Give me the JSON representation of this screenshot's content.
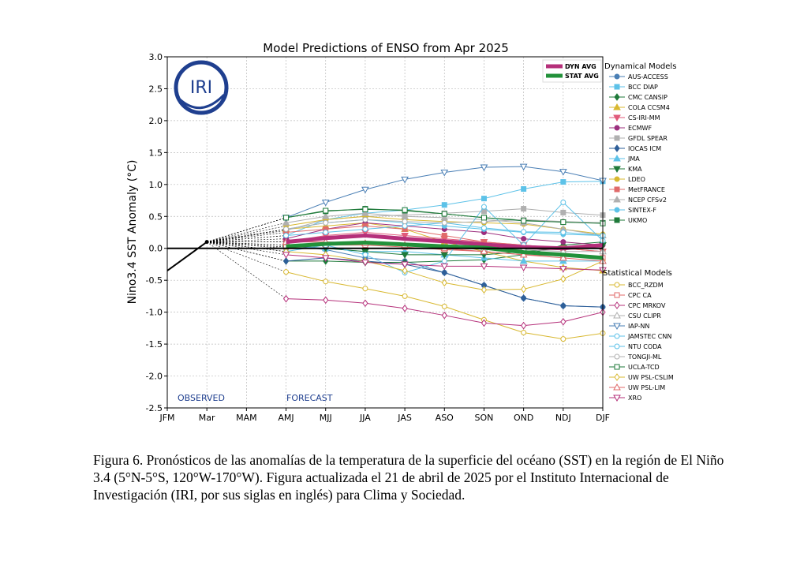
{
  "chart_data": {
    "type": "line",
    "title": "Model Predictions of ENSO from Apr 2025",
    "ylabel": "Nino3.4 SST Anomaly (°C)",
    "xlabel": "",
    "ylim": [
      -2.5,
      3.0
    ],
    "yticks": [
      -2.5,
      -2.0,
      -1.5,
      -1.0,
      -0.5,
      0.0,
      0.5,
      1.0,
      1.5,
      2.0,
      2.5,
      3.0
    ],
    "categories": [
      "JFM",
      "Mar",
      "MAM",
      "AMJ",
      "MJJ",
      "JJA",
      "JAS",
      "ASO",
      "SON",
      "OND",
      "NDJ",
      "DJF"
    ],
    "grid": true,
    "annotations": {
      "observed": "OBSERVED",
      "forecast": "FORECAST",
      "logo": "IRI"
    },
    "observed": [
      -0.35,
      0.1
    ],
    "legend_dyn_title": "Dynamical Models",
    "legend_stat_title": "Statistical Models",
    "averages": [
      {
        "name": "DYN AVG",
        "color": "#b5307a",
        "values": [
          null,
          null,
          null,
          0.1,
          0.16,
          0.2,
          0.15,
          0.11,
          0.06,
          0.02,
          0.0,
          0.05
        ]
      },
      {
        "name": "STAT AVG",
        "color": "#22913a",
        "values": [
          null,
          null,
          null,
          0.03,
          0.07,
          0.09,
          0.06,
          0.03,
          0.01,
          -0.06,
          -0.1,
          -0.15
        ]
      }
    ],
    "dynamical": [
      {
        "name": "AUS-ACCESS",
        "color": "#4a7fb5",
        "marker": "circle",
        "filled": true,
        "values": [
          null,
          null,
          null,
          0.05,
          -0.02,
          -0.15,
          -0.2,
          -0.38,
          -0.58,
          -0.78,
          -0.9,
          -0.92
        ]
      },
      {
        "name": "BCC DIAP",
        "color": "#5dc2e8",
        "marker": "square",
        "filled": true,
        "values": [
          null,
          null,
          null,
          0.2,
          0.45,
          0.55,
          0.6,
          0.68,
          0.78,
          0.93,
          1.04,
          1.05
        ]
      },
      {
        "name": "CMC CANSIP",
        "color": "#1f7a3a",
        "marker": "diamond",
        "filled": true,
        "values": [
          null,
          null,
          null,
          -0.2,
          -0.2,
          -0.22,
          -0.22,
          -0.2,
          -0.18,
          -0.1,
          0.05,
          0.1
        ]
      },
      {
        "name": "COLA CCSM4",
        "color": "#d8b830",
        "marker": "triangle",
        "filled": true,
        "values": [
          null,
          null,
          null,
          0.3,
          0.35,
          0.4,
          0.3,
          0.1,
          -0.05,
          -0.2,
          -0.3,
          -0.35
        ]
      },
      {
        "name": "CS-IRI-MM",
        "color": "#e05a7a",
        "marker": "triangle-down",
        "filled": true,
        "values": [
          null,
          null,
          null,
          0.1,
          0.2,
          0.25,
          0.2,
          0.15,
          0.1,
          0.05,
          0.0,
          -0.05
        ]
      },
      {
        "name": "ECMWF",
        "color": "#9c2f7e",
        "marker": "circle",
        "filled": true,
        "values": [
          null,
          null,
          null,
          0.15,
          0.3,
          0.4,
          0.35,
          0.3,
          0.25,
          0.15,
          0.1,
          0.05
        ]
      },
      {
        "name": "GFDL SPEAR",
        "color": "#b0b0b0",
        "marker": "square",
        "filled": true,
        "values": [
          null,
          null,
          null,
          0.28,
          0.45,
          0.5,
          0.52,
          0.55,
          0.58,
          0.62,
          0.56,
          0.52
        ]
      },
      {
        "name": "IOCAS ICM",
        "color": "#2e5f99",
        "marker": "diamond",
        "filled": true,
        "values": [
          null,
          null,
          null,
          -0.2,
          -0.15,
          -0.2,
          -0.25,
          -0.38,
          -0.58,
          -0.78,
          -0.9,
          -0.92
        ]
      },
      {
        "name": "JMA",
        "color": "#5dc2e8",
        "marker": "triangle",
        "filled": true,
        "values": [
          null,
          null,
          null,
          0.05,
          0.0,
          -0.05,
          -0.05,
          -0.1,
          -0.15,
          -0.2,
          -0.2,
          -0.2
        ]
      },
      {
        "name": "KMA",
        "color": "#1f7a3a",
        "marker": "triangle-down",
        "filled": true,
        "values": [
          null,
          null,
          null,
          0.0,
          0.0,
          -0.05,
          -0.1,
          -0.1,
          -0.1,
          -0.05,
          0.0,
          0.05
        ]
      },
      {
        "name": "LDEO",
        "color": "#d8b830",
        "marker": "circle",
        "filled": true,
        "values": [
          null,
          null,
          null,
          0.35,
          0.45,
          0.5,
          0.45,
          0.42,
          0.4,
          0.38,
          0.3,
          0.22
        ]
      },
      {
        "name": "MetFRANCE",
        "color": "#e06a6a",
        "marker": "square",
        "filled": true,
        "values": [
          null,
          null,
          null,
          0.25,
          0.3,
          0.35,
          0.3,
          0.2,
          0.1,
          0.05,
          0.0,
          -0.05
        ]
      },
      {
        "name": "NCEP CFSv2",
        "color": "#b0b0b0",
        "marker": "triangle",
        "filled": true,
        "values": [
          null,
          null,
          null,
          0.4,
          0.5,
          0.55,
          0.5,
          0.48,
          0.45,
          0.4,
          0.3,
          0.2
        ]
      },
      {
        "name": "SINTEX-F",
        "color": "#5dc2e8",
        "marker": "circle",
        "filled": true,
        "values": [
          null,
          null,
          null,
          0.3,
          0.4,
          0.45,
          0.4,
          0.35,
          0.3,
          0.25,
          0.22,
          0.2
        ]
      },
      {
        "name": "UKMO",
        "color": "#1f7a3a",
        "marker": "square",
        "filled": true,
        "values": [
          null,
          null,
          null,
          0.48,
          0.58,
          0.62,
          0.59,
          0.54,
          0.48,
          0.44,
          0.41,
          0.4
        ]
      }
    ],
    "statistical": [
      {
        "name": "BCC_RZDM",
        "color": "#d8b830",
        "marker": "circle",
        "filled": false,
        "values": [
          null,
          null,
          null,
          -0.37,
          -0.52,
          -0.63,
          -0.75,
          -0.91,
          -1.12,
          -1.32,
          -1.42,
          -1.33
        ]
      },
      {
        "name": "CPC CA",
        "color": "#e06a6a",
        "marker": "square",
        "filled": false,
        "values": [
          null,
          null,
          null,
          0.02,
          0.05,
          0.05,
          0.02,
          -0.02,
          -0.05,
          -0.1,
          -0.12,
          -0.15
        ]
      },
      {
        "name": "CPC MRKOV",
        "color": "#b5307a",
        "marker": "diamond",
        "filled": false,
        "values": [
          null,
          null,
          null,
          -0.79,
          -0.81,
          -0.86,
          -0.94,
          -1.05,
          -1.17,
          -1.21,
          -1.15,
          -1.0
        ]
      },
      {
        "name": "CSU CLIPR",
        "color": "#b0b0b0",
        "marker": "triangle",
        "filled": false,
        "values": [
          null,
          null,
          null,
          0.1,
          0.1,
          0.08,
          0.05,
          0.02,
          0.0,
          -0.02,
          -0.05,
          -0.05
        ]
      },
      {
        "name": "IAP-NN",
        "color": "#4a7fb5",
        "marker": "triangle-down",
        "filled": false,
        "values": [
          null,
          null,
          null,
          0.48,
          0.72,
          0.92,
          1.08,
          1.19,
          1.27,
          1.28,
          1.2,
          1.06
        ]
      },
      {
        "name": "JAMSTEC CNN",
        "color": "#5dc2e8",
        "marker": "circle",
        "filled": false,
        "values": [
          null,
          null,
          null,
          -0.05,
          0.05,
          -0.1,
          -0.38,
          -0.2,
          0.65,
          0.05,
          0.72,
          0.12
        ]
      },
      {
        "name": "NTU CODA",
        "color": "#5dc2e8",
        "marker": "circle",
        "filled": false,
        "values": [
          null,
          null,
          null,
          0.2,
          0.25,
          0.3,
          0.35,
          0.4,
          0.32,
          0.26,
          0.25,
          0.2
        ]
      },
      {
        "name": "TONGJI-ML",
        "color": "#b0b0b0",
        "marker": "circle",
        "filled": false,
        "values": [
          null,
          null,
          null,
          0.3,
          0.4,
          0.45,
          0.42,
          0.4,
          0.42,
          0.45,
          0.42,
          0.4
        ]
      },
      {
        "name": "UCLA-TCD",
        "color": "#1f7a3a",
        "marker": "square",
        "filled": false,
        "values": [
          null,
          null,
          null,
          0.48,
          0.59,
          0.61,
          0.6,
          0.54,
          0.48,
          0.43,
          0.41,
          0.39
        ]
      },
      {
        "name": "UW PSL-CSLIM",
        "color": "#d8b830",
        "marker": "diamond",
        "filled": false,
        "values": [
          null,
          null,
          null,
          -0.05,
          -0.1,
          -0.2,
          -0.35,
          -0.54,
          -0.65,
          -0.64,
          -0.48,
          -0.2
        ]
      },
      {
        "name": "UW PSL-LIM",
        "color": "#e06a6a",
        "marker": "triangle",
        "filled": false,
        "values": [
          null,
          null,
          null,
          0.1,
          0.1,
          0.08,
          0.05,
          0.0,
          -0.05,
          -0.1,
          -0.15,
          -0.2
        ]
      },
      {
        "name": "XRO",
        "color": "#b5307a",
        "marker": "triangle-down",
        "filled": false,
        "values": [
          null,
          null,
          null,
          -0.1,
          -0.15,
          -0.22,
          -0.25,
          -0.28,
          -0.28,
          -0.3,
          -0.32,
          -0.34
        ]
      }
    ]
  },
  "caption": "Figura 6. Pronósticos de las anomalías de la temperatura de la superficie del océano (SST) en la región de El Niño 3.4 (5°N-5°S, 120°W-170°W). Figura actualizada el 21 de abril de 2025 por el Instituto Internacional de Investigación (IRI, por sus siglas en inglés) para Clima y Sociedad."
}
